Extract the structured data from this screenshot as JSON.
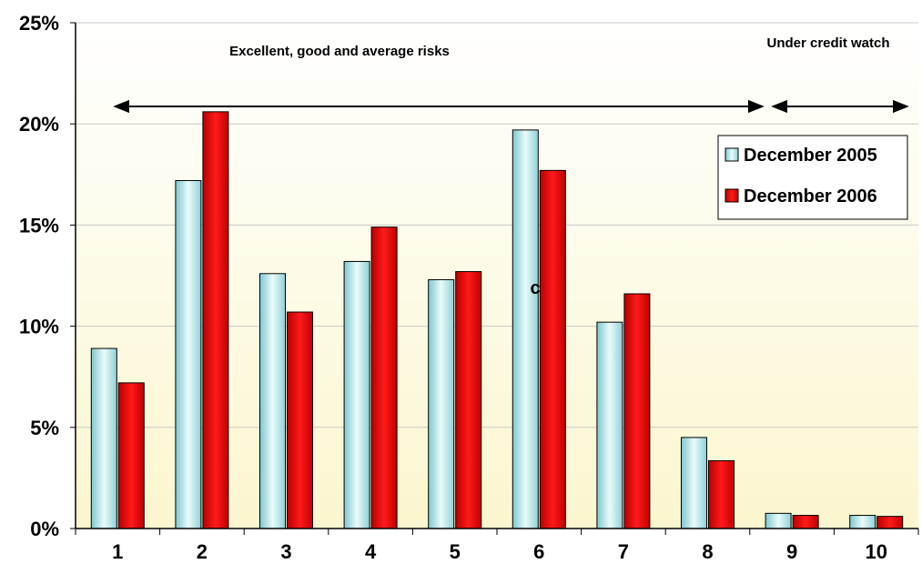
{
  "chart_data": {
    "type": "bar",
    "categories": [
      "1",
      "2",
      "3",
      "4",
      "5",
      "6",
      "7",
      "8",
      "9",
      "10"
    ],
    "series": [
      {
        "name": "December 2005",
        "color": "#b9e6e8",
        "values": [
          8.9,
          17.2,
          12.6,
          13.2,
          12.3,
          19.7,
          10.2,
          4.5,
          0.75,
          0.65
        ]
      },
      {
        "name": "December 2006",
        "color": "#e00000",
        "values": [
          7.2,
          20.6,
          10.7,
          14.9,
          12.7,
          17.7,
          11.6,
          3.35,
          0.65,
          0.6
        ]
      }
    ],
    "ylim": [
      0,
      25
    ],
    "y_ticks": [
      0,
      5,
      10,
      15,
      20,
      25
    ],
    "y_tick_format": "%",
    "grid": true,
    "legend_position": "top-right",
    "annotations": {
      "left_range_label": "Excellent, good and average risks",
      "right_range_label": "Under credit watch",
      "left_range_categories": [
        "1",
        "8"
      ],
      "right_range_categories": [
        "9",
        "10"
      ],
      "marker_label": "c",
      "marker_category": "6"
    }
  }
}
